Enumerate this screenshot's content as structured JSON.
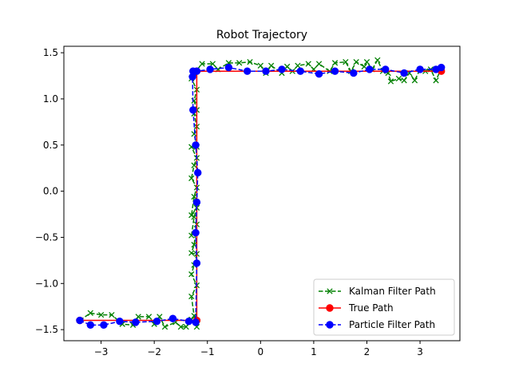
{
  "chart_data": {
    "type": "line",
    "title": "Robot Trajectory",
    "xlabel": "",
    "ylabel": "",
    "xlim": [
      -3.7,
      3.75
    ],
    "ylim": [
      -1.62,
      1.57
    ],
    "x_ticks": [
      -3,
      -2,
      -1,
      0,
      1,
      2,
      3
    ],
    "y_ticks": [
      -1.5,
      -1.0,
      -0.5,
      0.0,
      0.5,
      1.0,
      1.5
    ],
    "x_tick_labels": [
      "−3",
      "−2",
      "−1",
      "0",
      "1",
      "2",
      "3"
    ],
    "y_tick_labels": [
      "−1.5",
      "−1.0",
      "−0.5",
      "0.0",
      "0.5",
      "1.0",
      "1.5"
    ],
    "grid": false,
    "legend_position": "bottom-right",
    "series": [
      {
        "name": "Kalman Filter Path",
        "color": "#008000",
        "line_style": "dashed",
        "marker": "x",
        "points": [
          [
            -3.4,
            -1.4
          ],
          [
            -3.2,
            -1.32
          ],
          [
            -3.0,
            -1.34
          ],
          [
            -2.8,
            -1.34
          ],
          [
            -2.6,
            -1.44
          ],
          [
            -2.4,
            -1.45
          ],
          [
            -2.3,
            -1.36
          ],
          [
            -2.1,
            -1.36
          ],
          [
            -2.0,
            -1.44
          ],
          [
            -1.9,
            -1.36
          ],
          [
            -1.8,
            -1.47
          ],
          [
            -1.6,
            -1.42
          ],
          [
            -1.5,
            -1.47
          ],
          [
            -1.4,
            -1.47
          ],
          [
            -1.3,
            -1.39
          ],
          [
            -1.2,
            -1.47
          ],
          [
            -1.25,
            -1.35
          ],
          [
            -1.3,
            -1.14
          ],
          [
            -1.2,
            -1.02
          ],
          [
            -1.3,
            -0.9
          ],
          [
            -1.25,
            -0.8
          ],
          [
            -1.2,
            -0.68
          ],
          [
            -1.3,
            -0.67
          ],
          [
            -1.25,
            -0.58
          ],
          [
            -1.2,
            -0.36
          ],
          [
            -1.3,
            -0.48
          ],
          [
            -1.25,
            -0.28
          ],
          [
            -1.2,
            -0.18
          ],
          [
            -1.3,
            -0.26
          ],
          [
            -1.25,
            -0.06
          ],
          [
            -1.2,
            0.04
          ],
          [
            -1.3,
            0.14
          ],
          [
            -1.25,
            0.28
          ],
          [
            -1.2,
            0.36
          ],
          [
            -1.3,
            0.48
          ],
          [
            -1.2,
            0.48
          ],
          [
            -1.25,
            0.62
          ],
          [
            -1.2,
            0.7
          ],
          [
            -1.25,
            0.84
          ],
          [
            -1.2,
            0.88
          ],
          [
            -1.25,
            0.98
          ],
          [
            -1.2,
            1.1
          ],
          [
            -1.3,
            1.22
          ],
          [
            -1.25,
            1.28
          ],
          [
            -1.1,
            1.38
          ],
          [
            -0.9,
            1.38
          ],
          [
            -0.8,
            1.32
          ],
          [
            -0.6,
            1.39
          ],
          [
            -0.4,
            1.39
          ],
          [
            -0.2,
            1.4
          ],
          [
            0.0,
            1.36
          ],
          [
            0.1,
            1.28
          ],
          [
            0.2,
            1.36
          ],
          [
            0.4,
            1.28
          ],
          [
            0.5,
            1.35
          ],
          [
            0.6,
            1.3
          ],
          [
            0.7,
            1.36
          ],
          [
            0.9,
            1.38
          ],
          [
            1.0,
            1.32
          ],
          [
            1.1,
            1.38
          ],
          [
            1.3,
            1.3
          ],
          [
            1.4,
            1.39
          ],
          [
            1.6,
            1.4
          ],
          [
            1.7,
            1.3
          ],
          [
            1.8,
            1.4
          ],
          [
            1.95,
            1.35
          ],
          [
            2.0,
            1.4
          ],
          [
            2.1,
            1.32
          ],
          [
            2.2,
            1.42
          ],
          [
            2.3,
            1.3
          ],
          [
            2.4,
            1.28
          ],
          [
            2.45,
            1.19
          ],
          [
            2.6,
            1.22
          ],
          [
            2.7,
            1.2
          ],
          [
            2.8,
            1.28
          ],
          [
            2.9,
            1.2
          ],
          [
            3.0,
            1.32
          ],
          [
            3.1,
            1.3
          ],
          [
            3.2,
            1.32
          ],
          [
            3.3,
            1.2
          ],
          [
            3.4,
            1.33
          ]
        ]
      },
      {
        "name": "True Path",
        "color": "#ff0000",
        "line_style": "solid",
        "marker": "o",
        "points": [
          [
            -3.4,
            -1.4
          ],
          [
            -1.2,
            -1.4
          ],
          [
            -1.2,
            1.3
          ],
          [
            3.4,
            1.3
          ]
        ]
      },
      {
        "name": "Particle Filter Path",
        "color": "#0000ff",
        "line_style": "dashed",
        "marker": "o",
        "points": [
          [
            -3.4,
            -1.4
          ],
          [
            -3.2,
            -1.45
          ],
          [
            -2.95,
            -1.45
          ],
          [
            -2.65,
            -1.41
          ],
          [
            -2.35,
            -1.42
          ],
          [
            -1.95,
            -1.41
          ],
          [
            -1.65,
            -1.38
          ],
          [
            -1.35,
            -1.41
          ],
          [
            -1.22,
            -1.42
          ],
          [
            -1.2,
            -0.78
          ],
          [
            -1.22,
            -0.45
          ],
          [
            -1.2,
            -0.12
          ],
          [
            -1.18,
            0.2
          ],
          [
            -1.22,
            0.5
          ],
          [
            -1.27,
            0.88
          ],
          [
            -1.28,
            1.24
          ],
          [
            -1.27,
            1.3
          ],
          [
            -1.2,
            1.3
          ],
          [
            -0.95,
            1.32
          ],
          [
            -0.6,
            1.34
          ],
          [
            -0.25,
            1.3
          ],
          [
            0.1,
            1.3
          ],
          [
            0.4,
            1.32
          ],
          [
            0.75,
            1.3
          ],
          [
            1.1,
            1.27
          ],
          [
            1.4,
            1.3
          ],
          [
            1.75,
            1.28
          ],
          [
            2.05,
            1.32
          ],
          [
            2.35,
            1.32
          ],
          [
            2.7,
            1.28
          ],
          [
            3.0,
            1.32
          ],
          [
            3.3,
            1.32
          ],
          [
            3.4,
            1.34
          ]
        ]
      }
    ]
  }
}
